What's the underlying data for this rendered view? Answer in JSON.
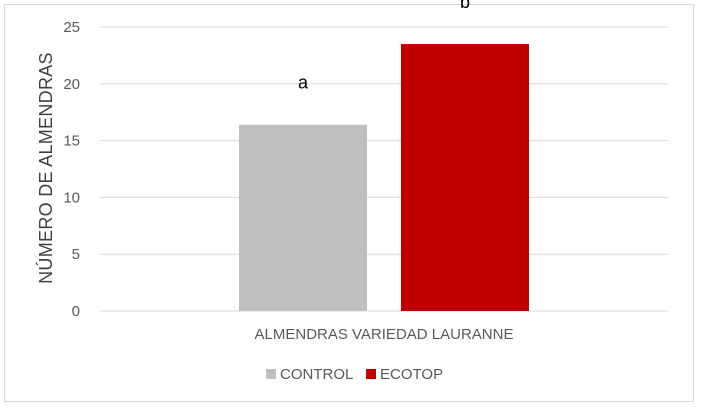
{
  "chart_data": {
    "type": "bar",
    "title": "",
    "xlabel": "",
    "ylabel": "NÚMERO DE ALMENDRAS",
    "categories": [
      "ALMENDRAS VARIEDAD LAURANNE"
    ],
    "series": [
      {
        "name": "CONTROL",
        "values": [
          16.4
        ],
        "color": "#bfbfbf",
        "label": "a"
      },
      {
        "name": "ECOTOP",
        "values": [
          23.5
        ],
        "color": "#c00000",
        "label": "b"
      }
    ],
    "ylim": [
      0,
      25
    ],
    "yticks": [
      0,
      5,
      10,
      15,
      20,
      25
    ],
    "grid": true,
    "legend_position": "bottom"
  }
}
